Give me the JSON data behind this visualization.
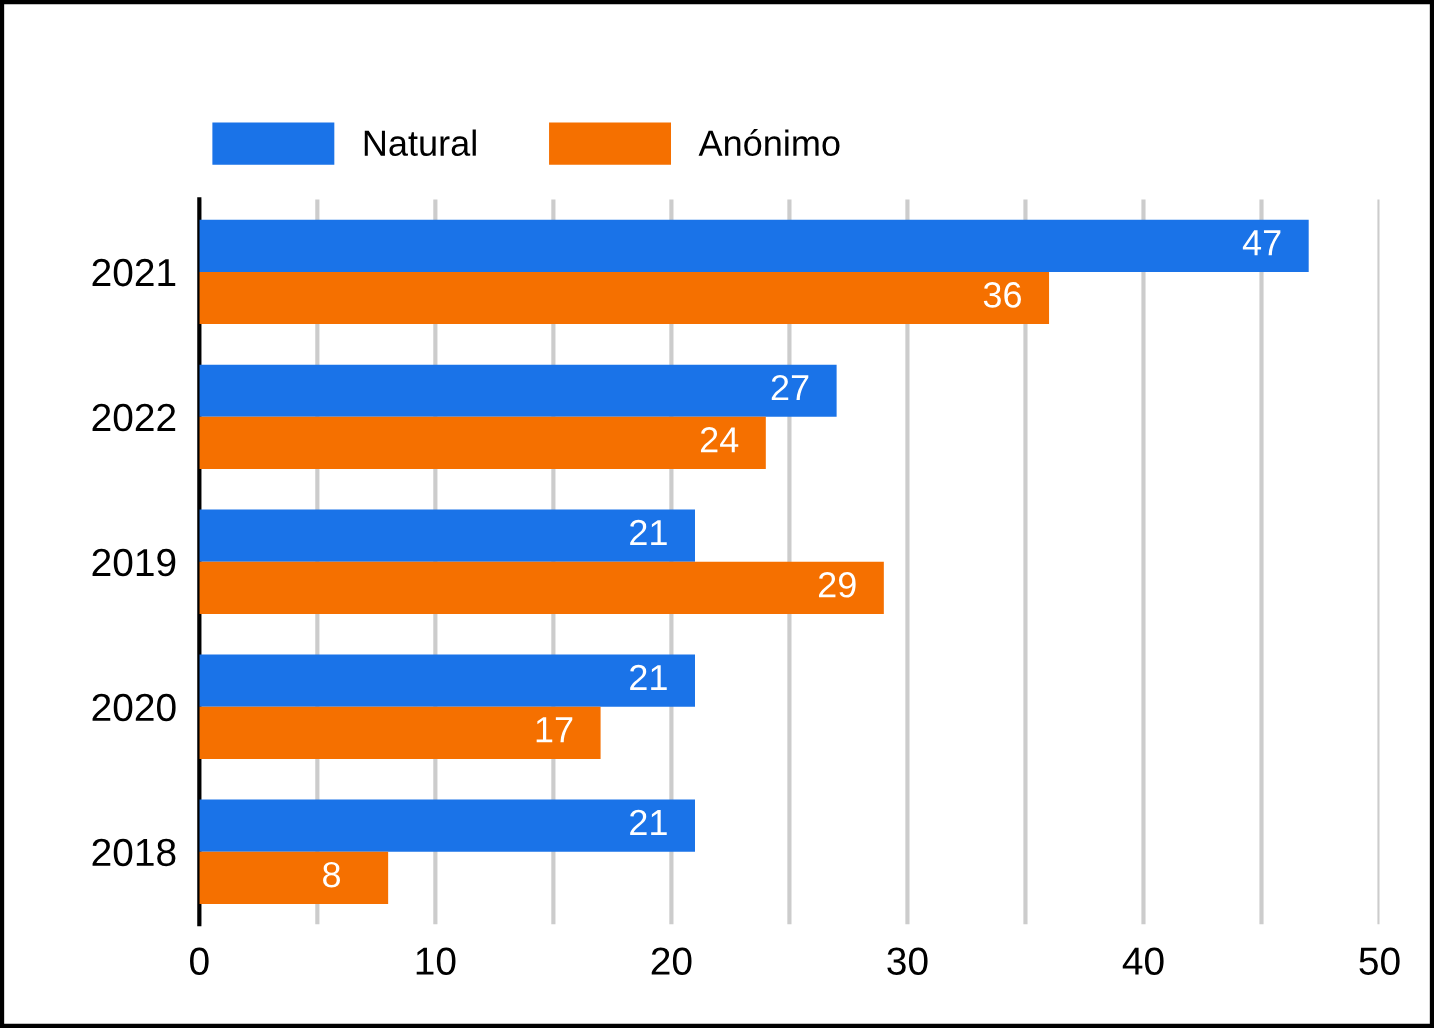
{
  "chart_data": {
    "type": "bar",
    "orientation": "horizontal",
    "categories": [
      "2021",
      "2022",
      "2019",
      "2020",
      "2018"
    ],
    "series": [
      {
        "name": "Natural",
        "color": "#1a73e8",
        "values": [
          47,
          27,
          21,
          21,
          21
        ]
      },
      {
        "name": "Anónimo",
        "color": "#f57000",
        "values": [
          36,
          24,
          29,
          17,
          8
        ]
      }
    ],
    "xlim": [
      0,
      50
    ],
    "xticks": [
      0,
      {
        "value": 5,
        "label": null
      },
      10,
      {
        "value": 15,
        "label": null
      },
      20,
      {
        "value": 25,
        "label": null
      },
      30,
      {
        "value": 35,
        "label": null
      },
      40,
      {
        "value": 45,
        "label": null
      },
      50
    ],
    "grid": "x",
    "legend": "top left",
    "data_labels": true
  }
}
